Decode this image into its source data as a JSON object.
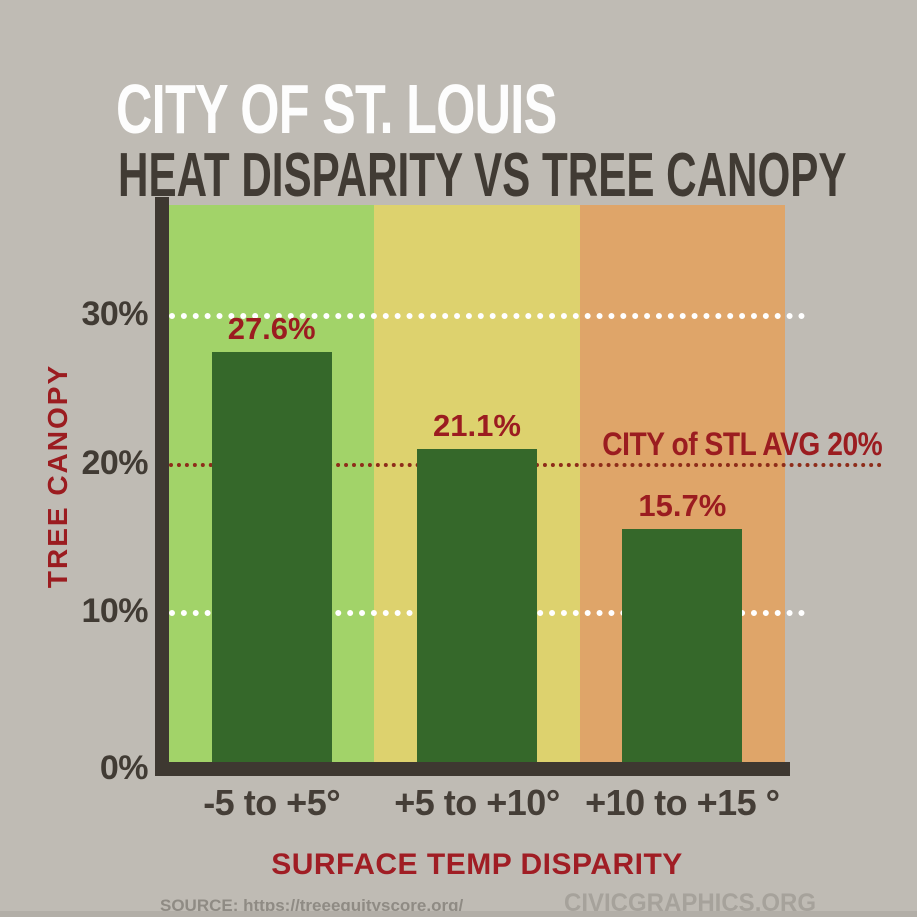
{
  "header": {
    "title": "CITY OF ST. LOUIS",
    "subtitle": "HEAT DISPARITY VS TREE CANOPY"
  },
  "chart_data": {
    "type": "bar",
    "title": "CITY OF ST. LOUIS — HEAT DISPARITY VS TREE CANOPY",
    "categories": [
      "-5 to +5°",
      "+5 to +10°",
      "+10 to +15 °"
    ],
    "values": [
      27.6,
      21.1,
      15.7
    ],
    "value_labels": [
      "27.6%",
      "21.1%",
      "15.7%"
    ],
    "xlabel": "SURFACE TEMP DISPARITY",
    "ylabel": "TREE CANOPY",
    "ylim": [
      0,
      37.5
    ],
    "yticks": [
      {
        "value": 0,
        "label": "0%"
      },
      {
        "value": 10,
        "label": "10%"
      },
      {
        "value": 20,
        "label": "20%"
      },
      {
        "value": 30,
        "label": "30%"
      }
    ],
    "white_dotted_gridlines_at": [
      10,
      30
    ],
    "reference_line": {
      "value": 20,
      "label": "CITY of STL AVG 20%"
    },
    "band_colors": [
      "#a2d369",
      "#ddd26e",
      "#dfa569"
    ],
    "bar_color": "#35682a",
    "legend": "none",
    "grid": "horizontal dotted, drawn behind bars"
  },
  "footer": {
    "source": "SOURCE: https://treeequityscore.org/",
    "brand": "CIVICGRAPHICS.ORG"
  },
  "colors": {
    "background": "#bfbbb4",
    "axis_dark": "#3e3831",
    "accent_red": "#9b1c20",
    "avg_line_red": "#8e2c1a",
    "grid_white": "#ffffff",
    "title_white": "#fdfdfd",
    "dark_text": "#413b34",
    "source_gray": "#8f8b84",
    "brand_gray": "#a6a29b",
    "bottom_strip": "#b2aea7"
  }
}
